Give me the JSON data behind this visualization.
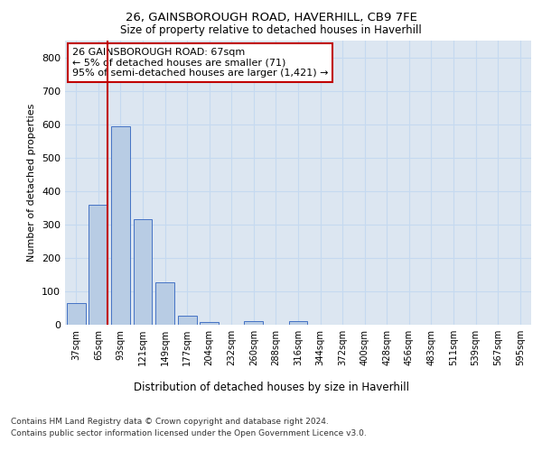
{
  "title1": "26, GAINSBOROUGH ROAD, HAVERHILL, CB9 7FE",
  "title2": "Size of property relative to detached houses in Haverhill",
  "xlabel": "Distribution of detached houses by size in Haverhill",
  "ylabel": "Number of detached properties",
  "bar_labels": [
    "37sqm",
    "65sqm",
    "93sqm",
    "121sqm",
    "149sqm",
    "177sqm",
    "204sqm",
    "232sqm",
    "260sqm",
    "288sqm",
    "316sqm",
    "344sqm",
    "372sqm",
    "400sqm",
    "428sqm",
    "456sqm",
    "483sqm",
    "511sqm",
    "539sqm",
    "567sqm",
    "595sqm"
  ],
  "bar_values": [
    65,
    360,
    595,
    315,
    128,
    28,
    7,
    0,
    10,
    0,
    10,
    0,
    0,
    0,
    0,
    0,
    0,
    0,
    0,
    0,
    0
  ],
  "bar_color": "#b8cce4",
  "bar_edgecolor": "#4472c4",
  "vline_color": "#c00000",
  "annotation_text": "26 GAINSBOROUGH ROAD: 67sqm\n← 5% of detached houses are smaller (71)\n95% of semi-detached houses are larger (1,421) →",
  "annotation_box_color": "#ffffff",
  "annotation_box_edgecolor": "#c00000",
  "ylim": [
    0,
    850
  ],
  "yticks": [
    0,
    100,
    200,
    300,
    400,
    500,
    600,
    700,
    800
  ],
  "grid_color": "#c5d9f0",
  "bg_color": "#dce6f1",
  "footer1": "Contains HM Land Registry data © Crown copyright and database right 2024.",
  "footer2": "Contains public sector information licensed under the Open Government Licence v3.0."
}
